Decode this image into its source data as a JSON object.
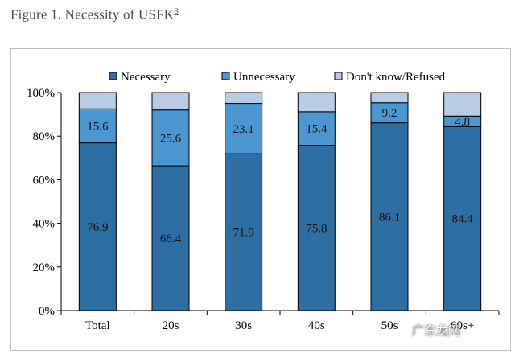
{
  "figure": {
    "title": "Figure 1. Necessity of USFK",
    "footnote": "8"
  },
  "colors": {
    "necessary": "#2e6fa3",
    "unnecessary": "#4b97d2",
    "dont_know": "#b8cce4"
  },
  "chart_data": {
    "type": "bar",
    "stacked": true,
    "categories": [
      "Total",
      "20s",
      "30s",
      "40s",
      "50s",
      "60s+"
    ],
    "series": [
      {
        "name": "Necessary",
        "values": [
          76.9,
          66.4,
          71.9,
          75.8,
          86.1,
          84.4
        ]
      },
      {
        "name": "Unnecessary",
        "values": [
          15.6,
          25.6,
          23.1,
          15.4,
          9.2,
          4.8
        ]
      },
      {
        "name": "Don't know/Refused",
        "values": [
          7.5,
          8.0,
          5.0,
          8.8,
          4.7,
          10.8
        ]
      }
    ],
    "labeled_series": [
      "Necessary",
      "Unnecessary"
    ],
    "ylim": [
      0,
      100
    ],
    "yticks": [
      "0%",
      "20%",
      "40%",
      "60%",
      "80%",
      "100%"
    ],
    "legend_position": "top",
    "grid": false
  },
  "watermark": "广东龙网"
}
